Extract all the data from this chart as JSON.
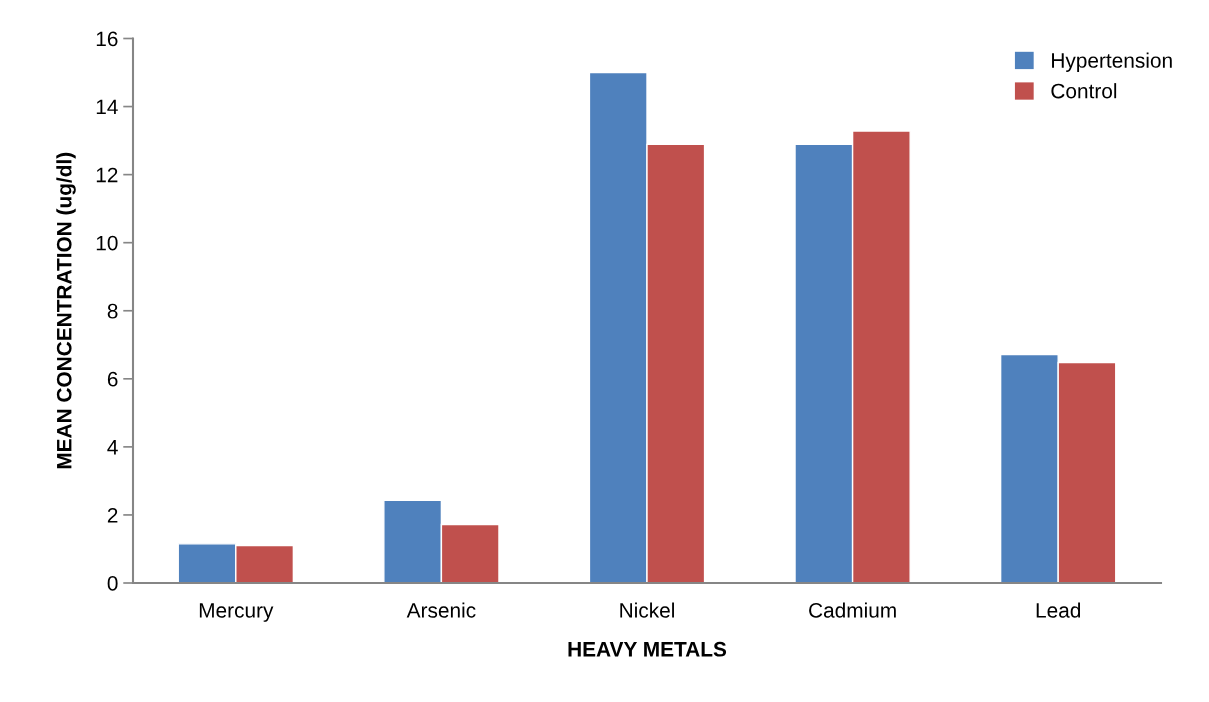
{
  "chart_data": {
    "type": "bar",
    "xlabel": "HEAVY METALS",
    "ylabel": "MEAN CONCENTRATION (ug/dl)",
    "categories": [
      "Mercury",
      "Arsenic",
      "Nickel",
      "Cadmium",
      "Lead"
    ],
    "series": [
      {
        "name": "Hypertension",
        "color": "#4f81bd",
        "values": [
          1.15,
          2.43,
          15.0,
          12.89,
          6.71
        ]
      },
      {
        "name": "Control",
        "color": "#c0504d",
        "values": [
          1.1,
          1.72,
          12.89,
          13.28,
          6.48
        ]
      }
    ],
    "ylim": [
      0,
      16
    ],
    "yticks": [
      0,
      2,
      4,
      6,
      8,
      10,
      12,
      14,
      16
    ],
    "grid": false,
    "legend": "top right"
  }
}
